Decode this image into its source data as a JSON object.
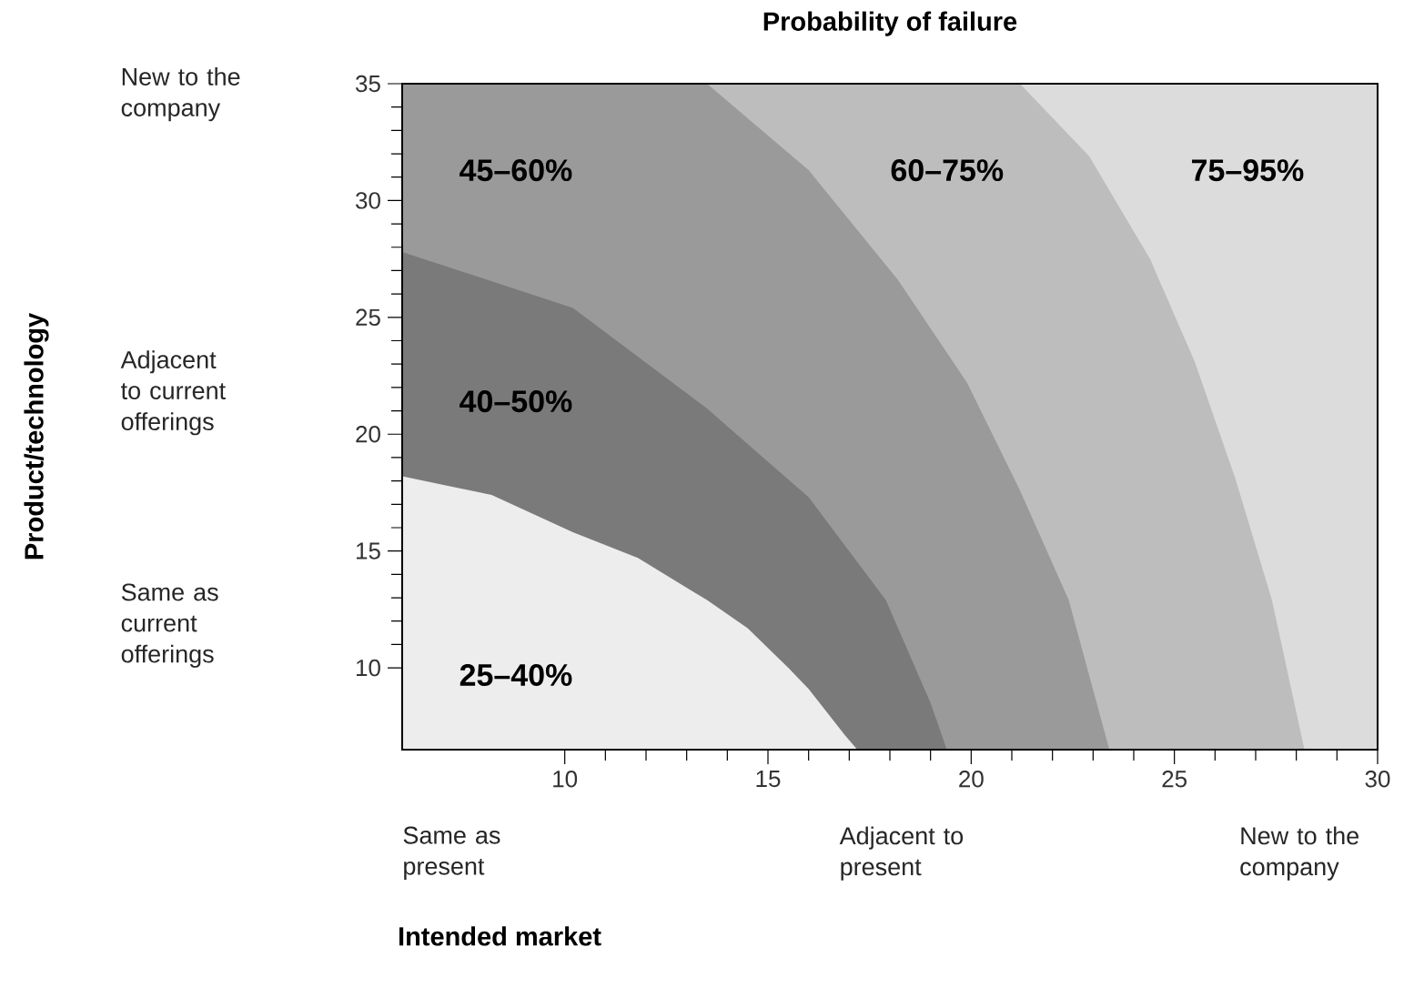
{
  "chart_data": {
    "type": "area",
    "title": "Probability of failure",
    "xlim": [
      6,
      30
    ],
    "ylim": [
      6.5,
      35
    ],
    "xticks": [
      10,
      15,
      20,
      25,
      30
    ],
    "yticks": [
      10,
      15,
      20,
      25,
      30,
      35
    ],
    "series": [
      {
        "color": "#ededed",
        "x": [
          6,
          8.2,
          10.2,
          11.8,
          13.5,
          14.5,
          15.5,
          16.0,
          16.9,
          17.2
        ],
        "values": [
          18.2,
          17.4,
          15.8,
          14.7,
          12.9,
          11.7,
          10.0,
          9.1,
          7.1,
          6.5
        ]
      },
      {
        "color": "#7a7a7a",
        "x": [
          6,
          10.2,
          13.5,
          16.0,
          17.9,
          19.0,
          19.4
        ],
        "values": [
          27.8,
          25.4,
          21.1,
          17.3,
          12.9,
          8.5,
          6.5
        ]
      },
      {
        "color": "#9a9a9a",
        "x": [
          6,
          13.5,
          16.0,
          18.2,
          19.9,
          21.2,
          22.4,
          23.4
        ],
        "values": [
          35,
          35,
          31.3,
          26.6,
          22.2,
          17.6,
          12.9,
          6.5
        ]
      },
      {
        "color": "#bdbdbd",
        "x": [
          13.5,
          21.2,
          22.9,
          24.4,
          25.5,
          26.5,
          27.4,
          28.2
        ],
        "values": [
          35,
          35,
          31.9,
          27.5,
          23.1,
          18.1,
          12.9,
          6.5
        ]
      },
      {
        "color": "#dcdcdc",
        "x": [
          21.2,
          30
        ],
        "values": [
          35,
          35
        ]
      }
    ],
    "annotations": [
      "25–40%",
      "40–50%",
      "45–60%",
      "60–75%",
      "75–95%",
      "New to the company",
      "Adjacent to current offerings",
      "Same as current offerings",
      "Same as present",
      "Adjacent to present",
      "New to the company",
      "Intended market",
      "Product/technology"
    ]
  }
}
